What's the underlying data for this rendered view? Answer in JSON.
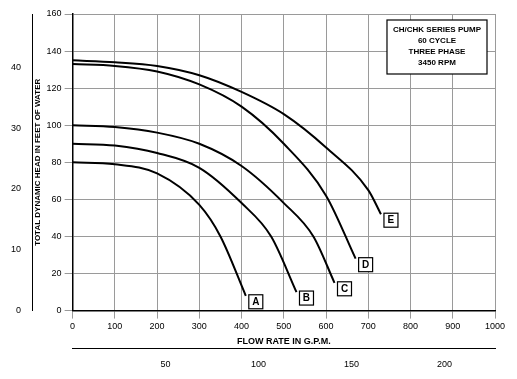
{
  "chart_data": {
    "type": "line",
    "x_label": "FLOW RATE IN G.P.M.",
    "y_label": "TOTAL DYNAMIC HEAD IN FEET OF WATER",
    "annotations": [
      "CH/CHK SERIES PUMP",
      "60 CYCLE",
      "THREE PHASE",
      "3450 RPM"
    ],
    "series": [
      {
        "name": "A",
        "color": "#000000",
        "x": [
          0,
          100,
          200,
          300,
          350,
          410
        ],
        "values": [
          80,
          79,
          74,
          57,
          40,
          8
        ]
      },
      {
        "name": "B",
        "color": "#000000",
        "x": [
          0,
          100,
          200,
          300,
          400,
          470,
          530
        ],
        "values": [
          90,
          89,
          85,
          77,
          58,
          40,
          10
        ]
      },
      {
        "name": "C",
        "color": "#000000",
        "x": [
          0,
          100,
          200,
          300,
          400,
          500,
          570,
          620
        ],
        "values": [
          100,
          99,
          96,
          90,
          78,
          58,
          40,
          15
        ]
      },
      {
        "name": "D",
        "color": "#000000",
        "x": [
          0,
          100,
          200,
          300,
          400,
          500,
          600,
          670
        ],
        "values": [
          133,
          132,
          129,
          122,
          110,
          90,
          62,
          28
        ]
      },
      {
        "name": "E",
        "color": "#000000",
        "x": [
          0,
          100,
          200,
          300,
          400,
          500,
          600,
          700,
          730
        ],
        "values": [
          135,
          134,
          132,
          127,
          118,
          106,
          88,
          65,
          52
        ]
      }
    ],
    "xlim": [
      0,
      1000
    ],
    "xticks": [
      0,
      100,
      200,
      300,
      400,
      500,
      600,
      700,
      800,
      900,
      1000
    ],
    "ylim": [
      0,
      160
    ],
    "yticks": [
      0,
      20,
      40,
      60,
      80,
      100,
      120,
      140,
      160
    ],
    "x2lim": [
      0,
      227.1
    ],
    "x2ticks": [
      50,
      100,
      150,
      200
    ],
    "y2lim": [
      0,
      48.77
    ],
    "y2ticks": [
      0,
      10,
      20,
      30,
      40
    ],
    "grid": true
  }
}
